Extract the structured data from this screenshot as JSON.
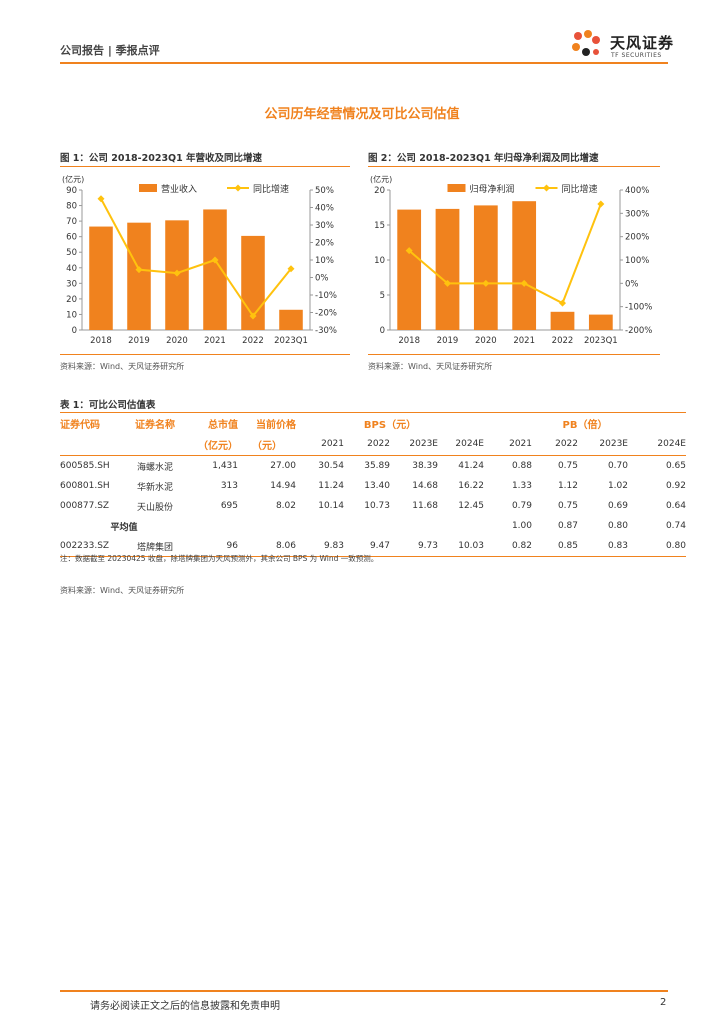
{
  "header": {
    "text": "公司报告 | 季报点评",
    "brand": "天风证券",
    "brand_sub": "TF SECURITIES"
  },
  "section_title": "公司历年经营情况及可比公司估值",
  "fig1": {
    "title": "图 1：公司 2018-2023Q1 年营收及同比增速",
    "source": "资料来源：Wind、天风证券研究所"
  },
  "fig2": {
    "title": "图 2：公司 2018-2023Q1 年归母净利润及同比增速",
    "source": "资料来源：Wind、天风证券研究所"
  },
  "chart_data": [
    {
      "type": "bar",
      "categories": [
        "2018",
        "2019",
        "2020",
        "2021",
        "2022",
        "2023Q1"
      ],
      "series": [
        {
          "name": "营业收入",
          "type": "bar",
          "axis": "left",
          "values": [
            66.5,
            69,
            70.5,
            77.5,
            60.5,
            13
          ]
        },
        {
          "name": "同比增速",
          "type": "line",
          "axis": "right",
          "values": [
            45,
            4.5,
            2.5,
            10,
            -22,
            5
          ]
        }
      ],
      "y_unit": "(亿元)",
      "ylim": [
        0,
        90
      ],
      "yticks": [
        0,
        10,
        20,
        30,
        40,
        50,
        60,
        70,
        80,
        90
      ],
      "y2lim": [
        -30,
        50
      ],
      "y2ticks": [
        "-30%",
        "-20%",
        "-10%",
        "0%",
        "10%",
        "20%",
        "30%",
        "40%",
        "50%"
      ],
      "legend": "top",
      "colors": {
        "bar": "#f0821e",
        "line": "#ffc20e"
      }
    },
    {
      "type": "bar",
      "categories": [
        "2018",
        "2019",
        "2020",
        "2021",
        "2022",
        "2023Q1"
      ],
      "series": [
        {
          "name": "归母净利润",
          "type": "bar",
          "axis": "left",
          "values": [
            17.2,
            17.3,
            17.8,
            18.4,
            2.6,
            2.2
          ]
        },
        {
          "name": "同比增速",
          "type": "line",
          "axis": "right",
          "values": [
            140,
            0,
            0,
            0,
            -85,
            340
          ]
        }
      ],
      "y_unit": "(亿元)",
      "ylim": [
        0,
        20
      ],
      "yticks": [
        0,
        5,
        10,
        15,
        20
      ],
      "y2lim": [
        -200,
        400
      ],
      "y2ticks": [
        "-200%",
        "-100%",
        "0%",
        "100%",
        "200%",
        "300%",
        "400%"
      ],
      "legend": "top",
      "colors": {
        "bar": "#f0821e",
        "line": "#ffc20e"
      }
    }
  ],
  "table": {
    "title": "表 1：可比公司估值表",
    "headers": {
      "code": "证券代码",
      "name": "证券名称",
      "mcap": "总市值",
      "mcap_unit": "（亿元）",
      "price": "当前价格",
      "price_unit": "（元）",
      "bps": "BPS（元）",
      "pb": "PB（倍）"
    },
    "years": [
      "2021",
      "2022",
      "2023E",
      "2024E",
      "2021",
      "2022",
      "2023E",
      "2024E"
    ],
    "rows": [
      [
        "600585.SH",
        "海螺水泥",
        "1,431",
        "27.00",
        "30.54",
        "35.89",
        "38.39",
        "41.24",
        "0.88",
        "0.75",
        "0.70",
        "0.65"
      ],
      [
        "600801.SH",
        "华新水泥",
        "313",
        "14.94",
        "11.24",
        "13.40",
        "14.68",
        "16.22",
        "1.33",
        "1.12",
        "1.02",
        "0.92"
      ],
      [
        "000877.SZ",
        "天山股份",
        "695",
        "8.02",
        "10.14",
        "10.73",
        "11.68",
        "12.45",
        "0.79",
        "0.75",
        "0.69",
        "0.64"
      ]
    ],
    "avg": {
      "label": "平均值",
      "values": [
        "1.00",
        "0.87",
        "0.80",
        "0.74"
      ]
    },
    "target": [
      "002233.SZ",
      "塔牌集团",
      "96",
      "8.06",
      "9.83",
      "9.47",
      "9.73",
      "10.03",
      "0.82",
      "0.85",
      "0.83",
      "0.80"
    ],
    "note": "注：数据截至 20230425 收盘，除塔牌集团为天风预测外，其余公司 BPS 为 Wind 一致预测。",
    "source": "资料来源：Wind、天风证券研究所"
  },
  "footer": {
    "text": "请务必阅读正文之后的信息披露和免责申明",
    "page": "2"
  }
}
